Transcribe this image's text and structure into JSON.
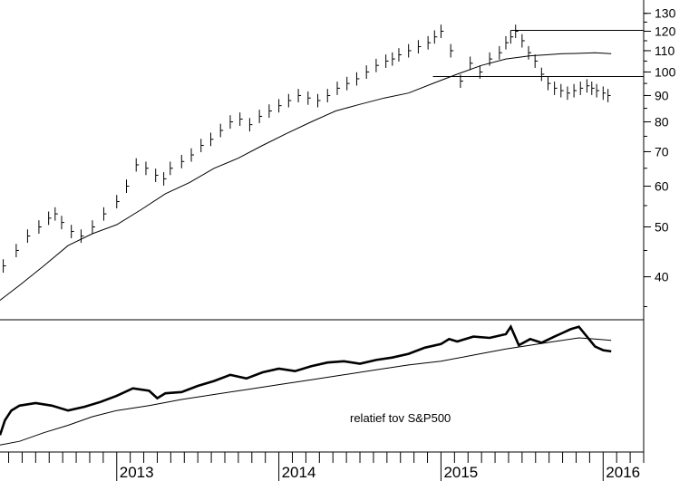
{
  "chart_data": [
    {
      "type": "line",
      "title": "",
      "xlabel": "",
      "ylabel": "",
      "log_scale": true,
      "ylim": [
        33,
        138
      ],
      "y_ticks": [
        "130",
        "120",
        "110",
        "100",
        "90",
        "80",
        "70",
        "60",
        "50",
        "40"
      ],
      "x_ticks": [
        "2013",
        "2014",
        "2015",
        "2016"
      ],
      "xlim": [
        2012.28,
        2016.25
      ],
      "series": [
        {
          "style": "weekly-bars",
          "x": [
            2012.3,
            2012.38,
            2012.45,
            2012.52,
            2012.58,
            2012.62,
            2012.66,
            2012.72,
            2012.78,
            2012.85,
            2012.92,
            2013.0,
            2013.06,
            2013.12,
            2013.18,
            2013.24,
            2013.29,
            2013.33,
            2013.4,
            2013.46,
            2013.52,
            2013.58,
            2013.64,
            2013.7,
            2013.76,
            2013.82,
            2013.88,
            2013.94,
            2014.0,
            2014.06,
            2014.12,
            2014.18,
            2014.24,
            2014.3,
            2014.36,
            2014.42,
            2014.48,
            2014.54,
            2014.6,
            2014.66,
            2014.7,
            2014.74,
            2014.8,
            2014.86,
            2014.92,
            2014.96,
            2015.0,
            2015.06,
            2015.12,
            2015.18,
            2015.24,
            2015.3,
            2015.36,
            2015.4,
            2015.43,
            2015.46,
            2015.5,
            2015.54,
            2015.58,
            2015.62,
            2015.66,
            2015.7,
            2015.74,
            2015.78,
            2015.82,
            2015.86,
            2015.9,
            2015.93,
            2015.96,
            2016.0,
            2016.03
          ],
          "values": [
            42,
            45,
            48,
            50,
            52,
            53,
            51,
            49,
            48,
            50,
            53,
            56,
            60,
            66,
            65,
            63,
            62,
            65,
            67,
            69,
            72,
            74,
            77,
            80,
            81,
            79,
            82,
            84,
            86,
            88,
            90,
            89,
            88,
            90,
            93,
            95,
            97,
            100,
            103,
            105,
            106,
            108,
            110,
            112,
            114,
            117,
            120,
            110,
            96,
            104,
            100,
            106,
            109,
            114,
            117,
            120,
            115,
            109,
            105,
            99,
            95,
            93,
            92,
            91,
            92,
            93,
            94,
            93,
            92,
            91,
            90
          ]
        },
        {
          "style": "moving-average",
          "x": [
            2012.28,
            2012.4,
            2012.55,
            2012.7,
            2012.85,
            2013.0,
            2013.15,
            2013.3,
            2013.45,
            2013.6,
            2013.75,
            2013.9,
            2014.05,
            2014.2,
            2014.35,
            2014.5,
            2014.65,
            2014.8,
            2014.95,
            2015.1,
            2015.25,
            2015.4,
            2015.55,
            2015.65,
            2015.75,
            2015.85,
            2015.95,
            2016.05
          ],
          "values": [
            36,
            38.5,
            42,
            46,
            48.5,
            50.5,
            54,
            58,
            61,
            65,
            68,
            72,
            76,
            80,
            84,
            86.5,
            89,
            91,
            95,
            99,
            103,
            106,
            107.5,
            108,
            108.5,
            108.7,
            109,
            108.5
          ]
        }
      ],
      "horizontal_lines": [
        120.5,
        98
      ]
    },
    {
      "type": "line",
      "title": "",
      "annotation": "relatief tov S&P500",
      "ylim": [
        0,
        1
      ],
      "xlim": [
        2012.28,
        2016.25
      ],
      "x_ticks": [
        "2013",
        "2014",
        "2015",
        "2016"
      ],
      "series": [
        {
          "style": "relative-strength",
          "x": [
            2012.28,
            2012.31,
            2012.35,
            2012.4,
            2012.5,
            2012.6,
            2012.7,
            2012.8,
            2012.9,
            2013.0,
            2013.1,
            2013.2,
            2013.25,
            2013.3,
            2013.4,
            2013.5,
            2013.6,
            2013.7,
            2013.8,
            2013.9,
            2014.0,
            2014.1,
            2014.2,
            2014.3,
            2014.4,
            2014.5,
            2014.6,
            2014.7,
            2014.8,
            2014.9,
            2015.0,
            2015.05,
            2015.1,
            2015.2,
            2015.3,
            2015.4,
            2015.43,
            2015.48,
            2015.55,
            2015.62,
            2015.7,
            2015.75,
            2015.8,
            2015.85,
            2015.9,
            2015.95,
            2016.0,
            2016.05
          ],
          "values": [
            0.1,
            0.22,
            0.3,
            0.34,
            0.36,
            0.34,
            0.3,
            0.33,
            0.37,
            0.42,
            0.48,
            0.46,
            0.4,
            0.44,
            0.45,
            0.5,
            0.54,
            0.59,
            0.56,
            0.61,
            0.64,
            0.62,
            0.66,
            0.69,
            0.7,
            0.68,
            0.71,
            0.73,
            0.76,
            0.81,
            0.84,
            0.88,
            0.86,
            0.9,
            0.89,
            0.92,
            0.98,
            0.83,
            0.88,
            0.85,
            0.9,
            0.93,
            0.96,
            0.98,
            0.9,
            0.82,
            0.79,
            0.78
          ]
        },
        {
          "style": "moving-average",
          "x": [
            2012.28,
            2012.4,
            2012.55,
            2012.7,
            2012.85,
            2013.0,
            2013.2,
            2013.4,
            2013.6,
            2013.8,
            2014.0,
            2014.2,
            2014.4,
            2014.6,
            2014.8,
            2015.0,
            2015.2,
            2015.4,
            2015.55,
            2015.7,
            2015.85,
            2015.95,
            2016.05
          ],
          "values": [
            0.02,
            0.05,
            0.12,
            0.18,
            0.25,
            0.3,
            0.34,
            0.39,
            0.43,
            0.47,
            0.51,
            0.55,
            0.59,
            0.63,
            0.67,
            0.7,
            0.75,
            0.8,
            0.83,
            0.86,
            0.89,
            0.88,
            0.87
          ]
        }
      ]
    }
  ]
}
